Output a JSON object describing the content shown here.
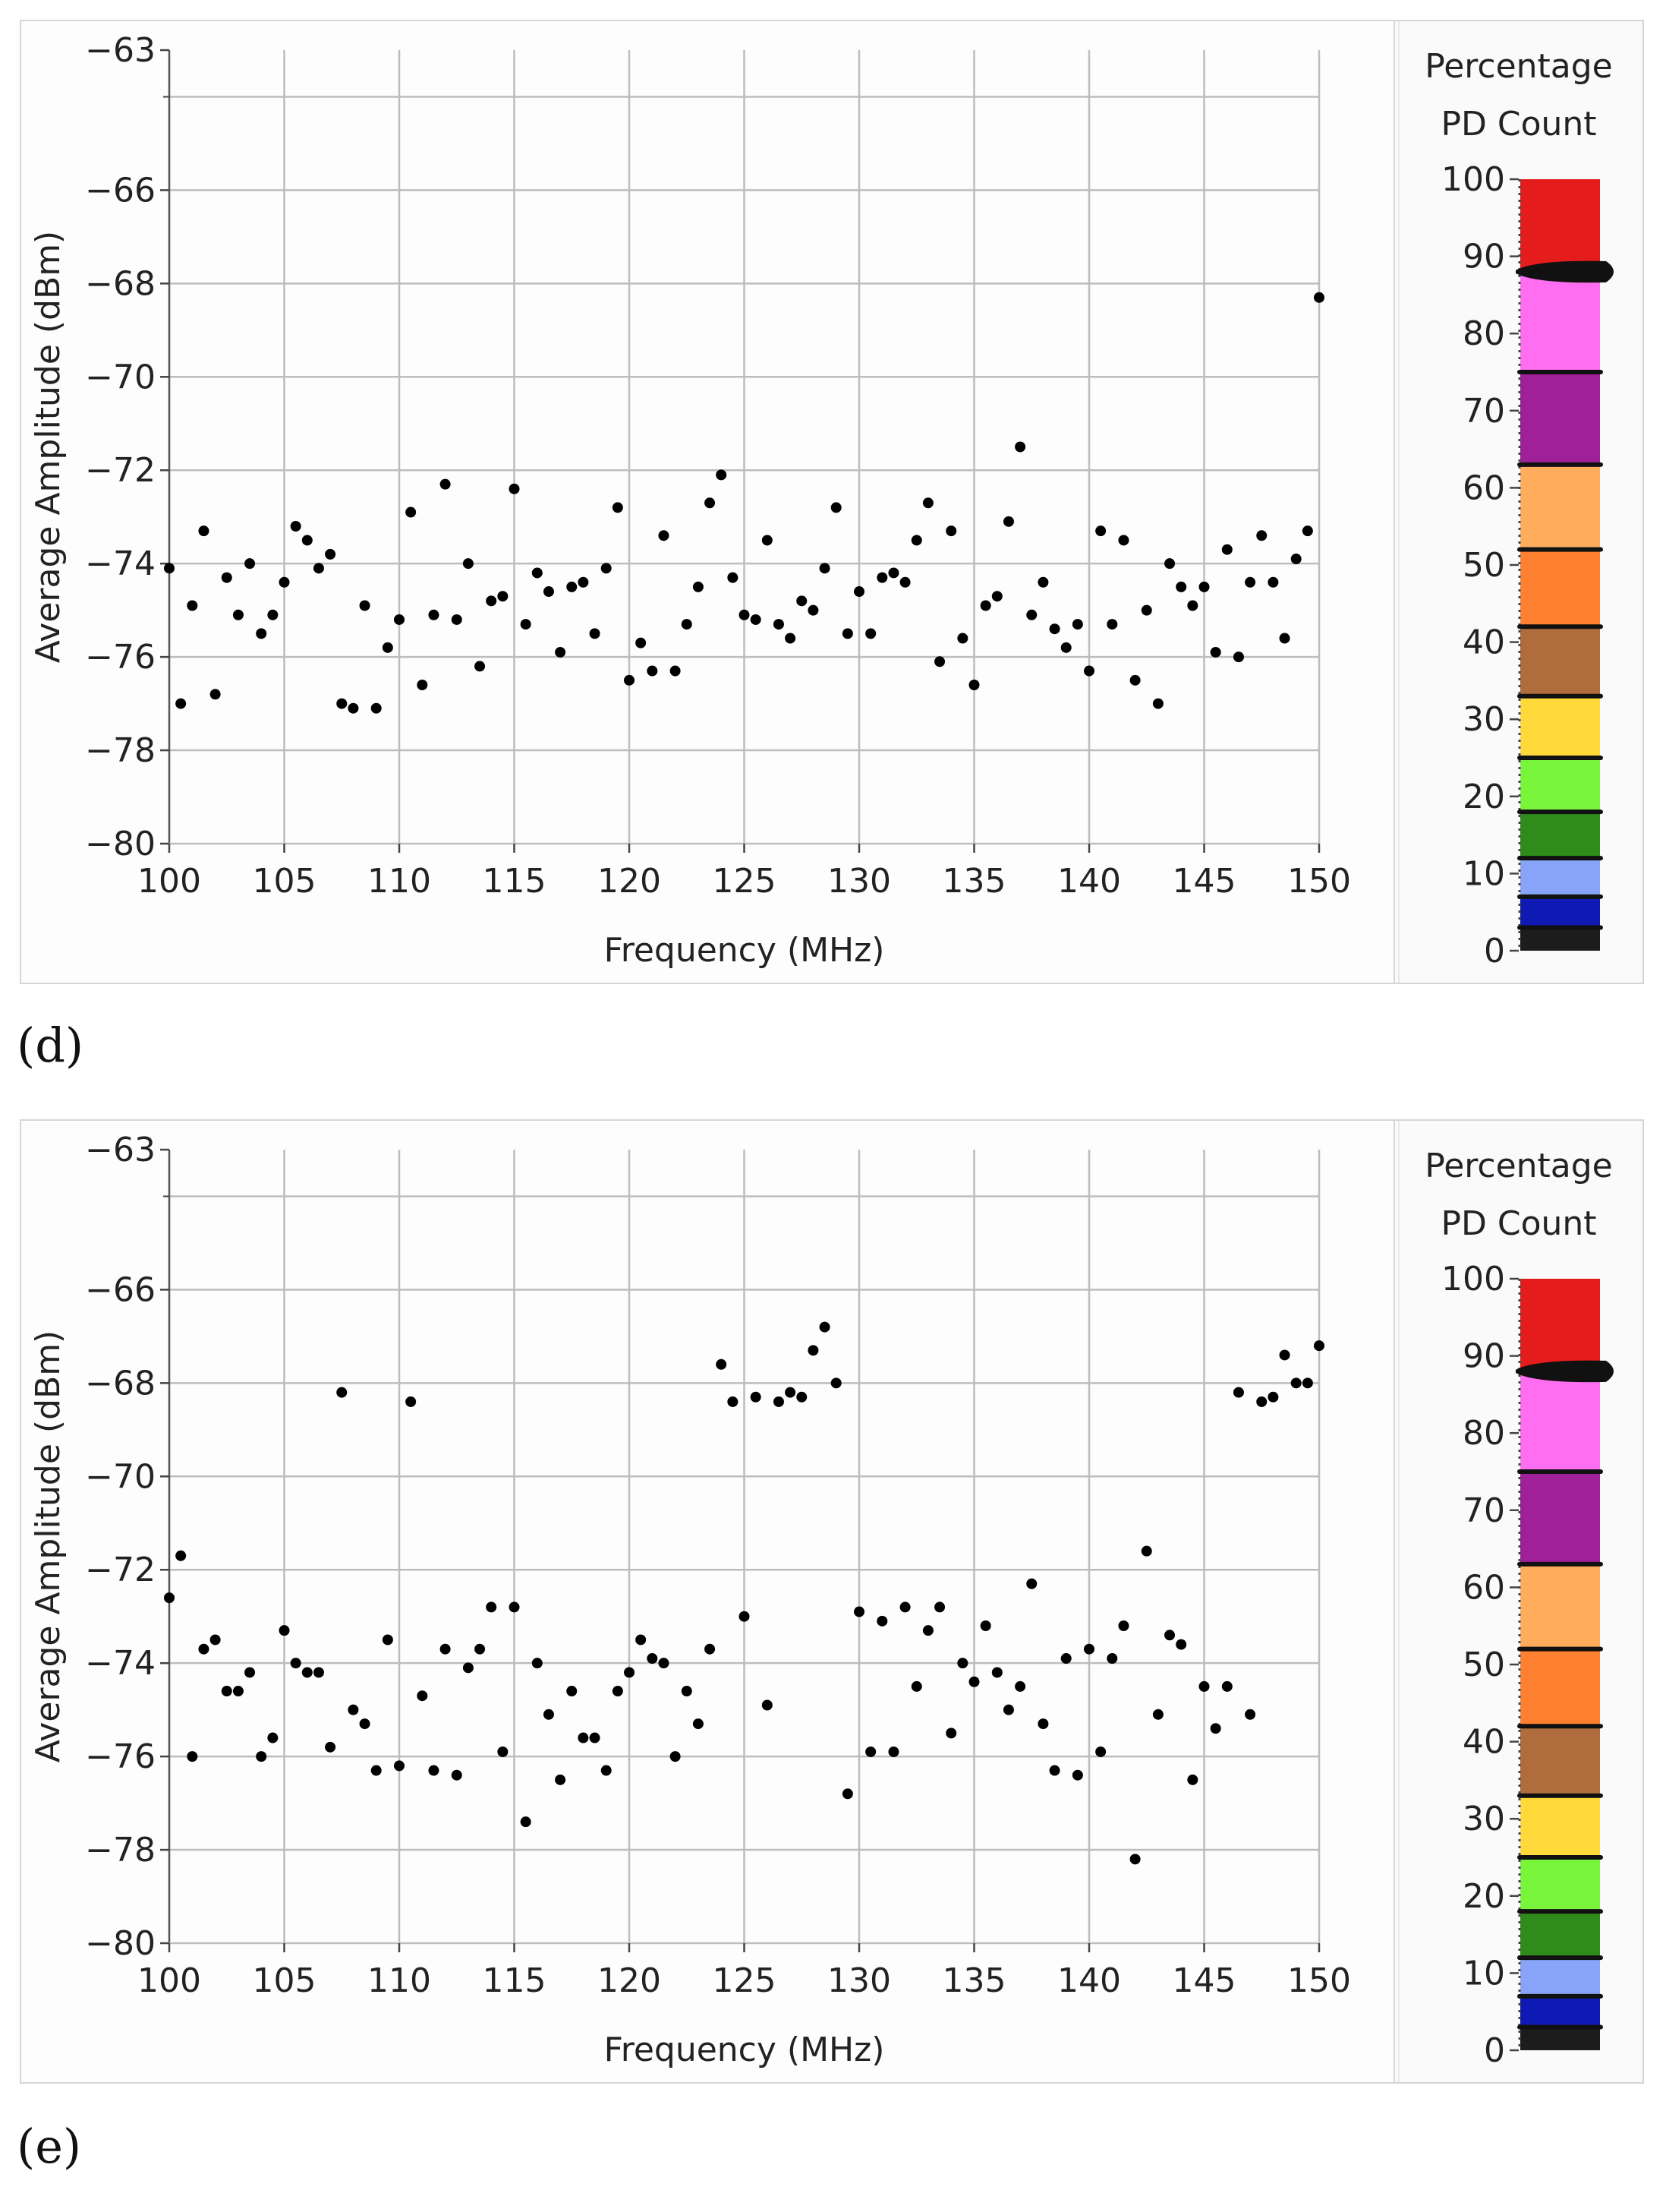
{
  "chart_data": [
    {
      "type": "scatter",
      "panel_label": "(d)",
      "xlabel": "Frequency (MHz)",
      "ylabel": "Average Amplitude (dBm)",
      "xlim": [
        100,
        150
      ],
      "ylim": [
        -80,
        -63
      ],
      "xticks": [
        100,
        105,
        110,
        115,
        120,
        125,
        130,
        135,
        140,
        145,
        150
      ],
      "xtick_labels": [
        "100",
        "105",
        "110",
        "115",
        "120",
        "125",
        "130",
        "135",
        "140",
        "145",
        "150"
      ],
      "yticks": [
        -63,
        -66,
        -68,
        -70,
        -72,
        -74,
        -76,
        -78,
        -80
      ],
      "ytick_labels": [
        "−63",
        "−66",
        "−68",
        "−70",
        "−72",
        "−74",
        "−76",
        "−78",
        "−80"
      ],
      "ygrid": [
        -64,
        -66,
        -68,
        -70,
        -72,
        -74,
        -76,
        -78
      ],
      "point_color": "#000000",
      "points": [
        [
          100,
          -74.1
        ],
        [
          100.5,
          -77
        ],
        [
          101,
          -74.9
        ],
        [
          101.5,
          -73.3
        ],
        [
          102,
          -76.8
        ],
        [
          102.5,
          -74.3
        ],
        [
          103,
          -75.1
        ],
        [
          103.5,
          -74
        ],
        [
          104,
          -75.5
        ],
        [
          104.5,
          -75.1
        ],
        [
          105,
          -74.4
        ],
        [
          105.5,
          -73.2
        ],
        [
          106,
          -73.5
        ],
        [
          106.5,
          -74.1
        ],
        [
          107,
          -73.8
        ],
        [
          107.5,
          -77
        ],
        [
          108,
          -77.1
        ],
        [
          108.5,
          -74.9
        ],
        [
          109,
          -77.1
        ],
        [
          109.5,
          -75.8
        ],
        [
          110,
          -75.2
        ],
        [
          110.5,
          -72.9
        ],
        [
          111,
          -76.6
        ],
        [
          111.5,
          -75.1
        ],
        [
          112,
          -72.3
        ],
        [
          112.5,
          -75.2
        ],
        [
          113,
          -74
        ],
        [
          113.5,
          -76.2
        ],
        [
          114,
          -74.8
        ],
        [
          114.5,
          -74.7
        ],
        [
          115,
          -72.4
        ],
        [
          115.5,
          -75.3
        ],
        [
          116,
          -74.2
        ],
        [
          116.5,
          -74.6
        ],
        [
          117,
          -75.9
        ],
        [
          117.5,
          -74.5
        ],
        [
          118,
          -74.4
        ],
        [
          118.5,
          -75.5
        ],
        [
          119,
          -74.1
        ],
        [
          119.5,
          -72.8
        ],
        [
          120,
          -76.5
        ],
        [
          120.5,
          -75.7
        ],
        [
          121,
          -76.3
        ],
        [
          121.5,
          -73.4
        ],
        [
          122,
          -76.3
        ],
        [
          122.5,
          -75.3
        ],
        [
          123,
          -74.5
        ],
        [
          123.5,
          -72.7
        ],
        [
          124,
          -72.1
        ],
        [
          124.5,
          -74.3
        ],
        [
          125,
          -75.1
        ],
        [
          125.5,
          -75.2
        ],
        [
          126,
          -73.5
        ],
        [
          126.5,
          -75.3
        ],
        [
          127,
          -75.6
        ],
        [
          127.5,
          -74.8
        ],
        [
          128,
          -75
        ],
        [
          128.5,
          -74.1
        ],
        [
          129,
          -72.8
        ],
        [
          129.5,
          -75.5
        ],
        [
          130,
          -74.6
        ],
        [
          130.5,
          -75.5
        ],
        [
          131,
          -74.3
        ],
        [
          131.5,
          -74.2
        ],
        [
          132,
          -74.4
        ],
        [
          132.5,
          -73.5
        ],
        [
          133,
          -72.7
        ],
        [
          133.5,
          -76.1
        ],
        [
          134,
          -73.3
        ],
        [
          134.5,
          -75.6
        ],
        [
          135,
          -76.6
        ],
        [
          135.5,
          -74.9
        ],
        [
          136,
          -74.7
        ],
        [
          136.5,
          -73.1
        ],
        [
          137,
          -71.5
        ],
        [
          137.5,
          -75.1
        ],
        [
          138,
          -74.4
        ],
        [
          138.5,
          -75.4
        ],
        [
          139,
          -75.8
        ],
        [
          139.5,
          -75.3
        ],
        [
          140,
          -76.3
        ],
        [
          140.5,
          -73.3
        ],
        [
          141,
          -75.3
        ],
        [
          141.5,
          -73.5
        ],
        [
          142,
          -76.5
        ],
        [
          142.5,
          -75
        ],
        [
          143,
          -77
        ],
        [
          143.5,
          -74
        ],
        [
          144,
          -74.5
        ],
        [
          144.5,
          -74.9
        ],
        [
          145,
          -74.5
        ],
        [
          145.5,
          -75.9
        ],
        [
          146,
          -73.7
        ],
        [
          146.5,
          -76
        ],
        [
          147,
          -74.4
        ],
        [
          147.5,
          -73.4
        ],
        [
          148,
          -74.4
        ],
        [
          148.5,
          -75.6
        ],
        [
          149,
          -73.9
        ],
        [
          149.5,
          -73.3
        ],
        [
          150,
          -68.3
        ]
      ]
    },
    {
      "type": "scatter",
      "panel_label": "(e)",
      "xlabel": "Frequency (MHz)",
      "ylabel": "Average Amplitude (dBm)",
      "xlim": [
        100,
        150
      ],
      "ylim": [
        -80,
        -63
      ],
      "xticks": [
        100,
        105,
        110,
        115,
        120,
        125,
        130,
        135,
        140,
        145,
        150
      ],
      "xtick_labels": [
        "100",
        "105",
        "110",
        "115",
        "120",
        "125",
        "130",
        "135",
        "140",
        "145",
        "150"
      ],
      "yticks": [
        -63,
        -66,
        -68,
        -70,
        -72,
        -74,
        -76,
        -78,
        -80
      ],
      "ytick_labels": [
        "−63",
        "−66",
        "−68",
        "−70",
        "−72",
        "−74",
        "−76",
        "−78",
        "−80"
      ],
      "ygrid": [
        -64,
        -66,
        -68,
        -70,
        -72,
        -74,
        -76,
        -78
      ],
      "point_color": "#000000",
      "points": [
        [
          100,
          -72.6
        ],
        [
          100.5,
          -71.7
        ],
        [
          101,
          -76
        ],
        [
          101.5,
          -73.7
        ],
        [
          102,
          -73.5
        ],
        [
          102.5,
          -74.6
        ],
        [
          103,
          -74.6
        ],
        [
          103.5,
          -74.2
        ],
        [
          104,
          -76
        ],
        [
          104.5,
          -75.6
        ],
        [
          105,
          -73.3
        ],
        [
          105.5,
          -74
        ],
        [
          106,
          -74.2
        ],
        [
          106.5,
          -74.2
        ],
        [
          107,
          -75.8
        ],
        [
          107.5,
          -68.2
        ],
        [
          108,
          -75
        ],
        [
          108.5,
          -75.3
        ],
        [
          109,
          -76.3
        ],
        [
          109.5,
          -73.5
        ],
        [
          110,
          -76.2
        ],
        [
          110.5,
          -68.4
        ],
        [
          111,
          -74.7
        ],
        [
          111.5,
          -76.3
        ],
        [
          112,
          -73.7
        ],
        [
          112.5,
          -76.4
        ],
        [
          113,
          -74.1
        ],
        [
          113.5,
          -73.7
        ],
        [
          114,
          -72.8
        ],
        [
          114.5,
          -75.9
        ],
        [
          115,
          -72.8
        ],
        [
          115.5,
          -77.4
        ],
        [
          116,
          -74
        ],
        [
          116.5,
          -75.1
        ],
        [
          117,
          -76.5
        ],
        [
          117.5,
          -74.6
        ],
        [
          118,
          -75.6
        ],
        [
          118.5,
          -75.6
        ],
        [
          119,
          -76.3
        ],
        [
          119.5,
          -74.6
        ],
        [
          120,
          -74.2
        ],
        [
          120.5,
          -73.5
        ],
        [
          121,
          -73.9
        ],
        [
          121.5,
          -74
        ],
        [
          122,
          -76
        ],
        [
          122.5,
          -74.6
        ],
        [
          123,
          -75.3
        ],
        [
          123.5,
          -73.7
        ],
        [
          124,
          -67.6
        ],
        [
          124.5,
          -68.4
        ],
        [
          125,
          -73
        ],
        [
          125.5,
          -68.3
        ],
        [
          126,
          -74.9
        ],
        [
          126.5,
          -68.4
        ],
        [
          127,
          -68.2
        ],
        [
          127.5,
          -68.3
        ],
        [
          128,
          -67.3
        ],
        [
          128.5,
          -66.8
        ],
        [
          129,
          -68
        ],
        [
          129.5,
          -76.8
        ],
        [
          130,
          -72.9
        ],
        [
          130.5,
          -75.9
        ],
        [
          131,
          -73.1
        ],
        [
          131.5,
          -75.9
        ],
        [
          132,
          -72.8
        ],
        [
          132.5,
          -74.5
        ],
        [
          133,
          -73.3
        ],
        [
          133.5,
          -72.8
        ],
        [
          134,
          -75.5
        ],
        [
          134.5,
          -74
        ],
        [
          135,
          -74.4
        ],
        [
          135.5,
          -73.2
        ],
        [
          136,
          -74.2
        ],
        [
          136.5,
          -75
        ],
        [
          137,
          -74.5
        ],
        [
          137.5,
          -72.3
        ],
        [
          138,
          -75.3
        ],
        [
          138.5,
          -76.3
        ],
        [
          139,
          -73.9
        ],
        [
          139.5,
          -76.4
        ],
        [
          140,
          -73.7
        ],
        [
          140.5,
          -75.9
        ],
        [
          141,
          -73.9
        ],
        [
          141.5,
          -73.2
        ],
        [
          142,
          -78.2
        ],
        [
          142.5,
          -71.6
        ],
        [
          143,
          -75.1
        ],
        [
          143.5,
          -73.4
        ],
        [
          144,
          -73.6
        ],
        [
          144.5,
          -76.5
        ],
        [
          145,
          -74.5
        ],
        [
          145.5,
          -75.4
        ],
        [
          146,
          -74.5
        ],
        [
          146.5,
          -68.2
        ],
        [
          147,
          -75.1
        ],
        [
          147.5,
          -68.4
        ],
        [
          148,
          -68.3
        ],
        [
          148.5,
          -67.4
        ],
        [
          149,
          -68
        ],
        [
          149.5,
          -68
        ],
        [
          150,
          -67.2
        ]
      ]
    }
  ],
  "legend": {
    "title_line1": "Percentage",
    "title_line2": "PD Count",
    "ticks": [
      "100",
      "90",
      "80",
      "70",
      "60",
      "50",
      "40",
      "30",
      "20",
      "10",
      "0"
    ],
    "tick_values": [
      100,
      90,
      80,
      70,
      60,
      50,
      40,
      30,
      20,
      10,
      0
    ],
    "bands": [
      {
        "from": 0,
        "to": 3,
        "color": "#1c1c1c"
      },
      {
        "from": 3,
        "to": 7,
        "color": "#0f1ab4"
      },
      {
        "from": 7,
        "to": 12,
        "color": "#88a4f8"
      },
      {
        "from": 12,
        "to": 18,
        "color": "#2f8c1b"
      },
      {
        "from": 18,
        "to": 25,
        "color": "#78f53a"
      },
      {
        "from": 25,
        "to": 33,
        "color": "#ffd93a"
      },
      {
        "from": 33,
        "to": 42,
        "color": "#b06c3c"
      },
      {
        "from": 42,
        "to": 52,
        "color": "#ff8030"
      },
      {
        "from": 52,
        "to": 63,
        "color": "#ffad5c"
      },
      {
        "from": 63,
        "to": 75,
        "color": "#a0209a"
      },
      {
        "from": 75,
        "to": 88,
        "color": "#ff6ef0"
      },
      {
        "from": 88,
        "to": 100,
        "color": "#e41c1c"
      }
    ],
    "pointer_value": 88,
    "dividers": [
      3,
      7,
      12,
      18,
      25,
      33,
      42,
      52,
      63,
      75
    ]
  }
}
